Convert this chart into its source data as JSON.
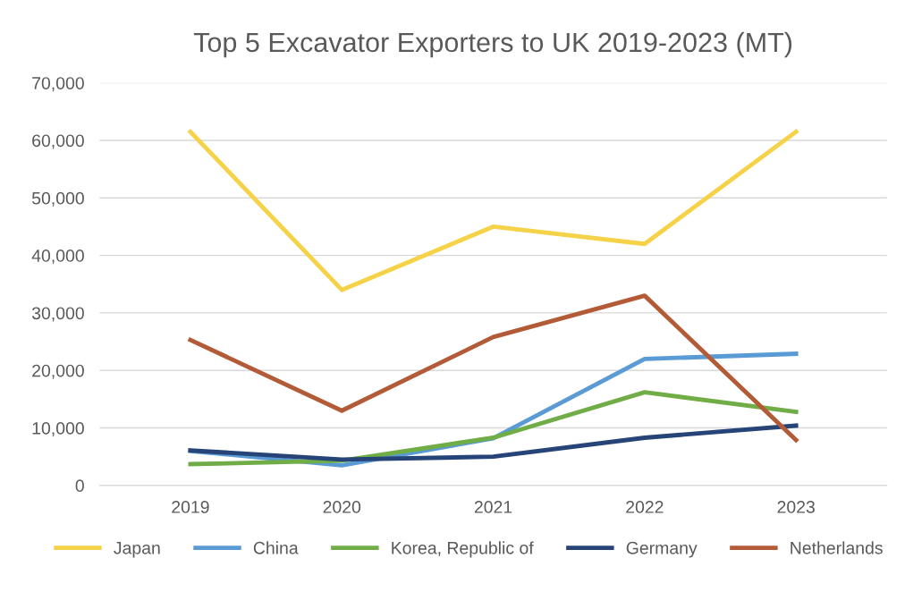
{
  "chart_data": {
    "type": "line",
    "title": "Top 5 Excavator Exporters to UK 2019-2023 (MT)",
    "categories": [
      "2019",
      "2020",
      "2021",
      "2022",
      "2023"
    ],
    "series": [
      {
        "name": "Japan",
        "color": "#f5d247",
        "values": [
          61500,
          34000,
          45000,
          42000,
          61500
        ]
      },
      {
        "name": "China",
        "color": "#5b9bd5",
        "values": [
          6000,
          3500,
          8200,
          22000,
          22900
        ]
      },
      {
        "name": "Korea, Republic of",
        "color": "#70ad47",
        "values": [
          3700,
          4300,
          8300,
          16200,
          12800
        ]
      },
      {
        "name": "Germany",
        "color": "#264478",
        "values": [
          6100,
          4500,
          5000,
          8300,
          10400
        ]
      },
      {
        "name": "Netherlands",
        "color": "#b35a37",
        "values": [
          25300,
          13000,
          25800,
          33000,
          7900
        ]
      }
    ],
    "ylim": [
      0,
      70000
    ],
    "yticks": [
      {
        "value": 0,
        "label": "0"
      },
      {
        "value": 10000,
        "label": "10,000"
      },
      {
        "value": 20000,
        "label": "20,000"
      },
      {
        "value": 30000,
        "label": "30,000"
      },
      {
        "value": 40000,
        "label": "40,000"
      },
      {
        "value": 50000,
        "label": "50,000"
      },
      {
        "value": 60000,
        "label": "60,000"
      },
      {
        "value": 70000,
        "label": "70,000"
      }
    ],
    "grid": "y",
    "legend": "bottom",
    "marker": "none",
    "line_style": "solid"
  }
}
